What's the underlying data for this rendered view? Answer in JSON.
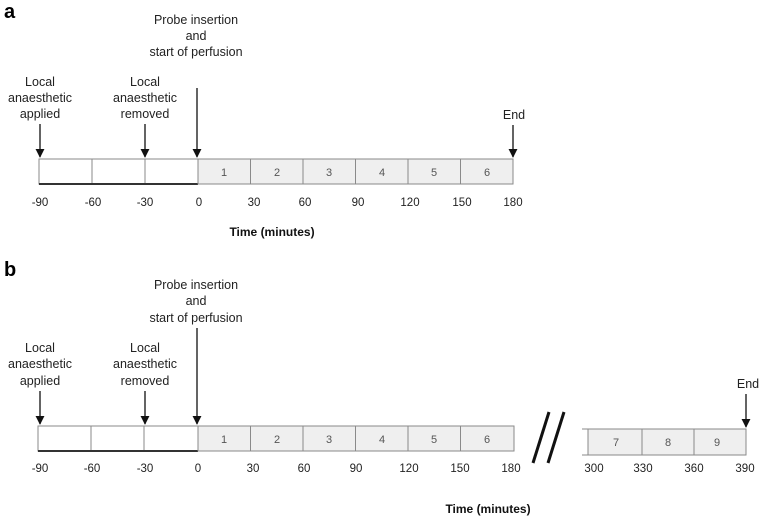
{
  "panels": [
    {
      "letter": "a",
      "events": {
        "probe": [
          "Probe insertion",
          "and",
          "start of perfusion"
        ],
        "applied": [
          "Local",
          "anaesthetic",
          "applied"
        ],
        "removed": [
          "Local",
          "anaesthetic",
          "removed"
        ],
        "end": [
          "End"
        ]
      },
      "pre_segments": 3,
      "sample_numbers": [
        "1",
        "2",
        "3",
        "4",
        "5",
        "6"
      ],
      "ticks": [
        "-90",
        "-60",
        "-30",
        "0",
        "30",
        "60",
        "90",
        "120",
        "150",
        "180"
      ],
      "axis_title": "Time (minutes)"
    },
    {
      "letter": "b",
      "events": {
        "probe": [
          "Probe insertion",
          "and",
          "start of perfusion"
        ],
        "applied": [
          "Local",
          "anaesthetic",
          "applied"
        ],
        "removed": [
          "Local",
          "anaesthetic",
          "removed"
        ],
        "end": [
          "End"
        ]
      },
      "pre_segments": 3,
      "sample_numbers": [
        "1",
        "2",
        "3",
        "4",
        "5",
        "6"
      ],
      "late_sample_numbers": [
        "7",
        "8",
        "9"
      ],
      "ticks": [
        "-90",
        "-60",
        "-30",
        "0",
        "30",
        "60",
        "90",
        "120",
        "150",
        "180"
      ],
      "late_ticks": [
        "300",
        "330",
        "360",
        "390"
      ],
      "axis_title": "Time (minutes)"
    }
  ],
  "colors": {
    "pre_fill": "#ffffff",
    "sample_fill": "#efefef",
    "border": "#8a8a8a",
    "arrow": "#111111"
  }
}
